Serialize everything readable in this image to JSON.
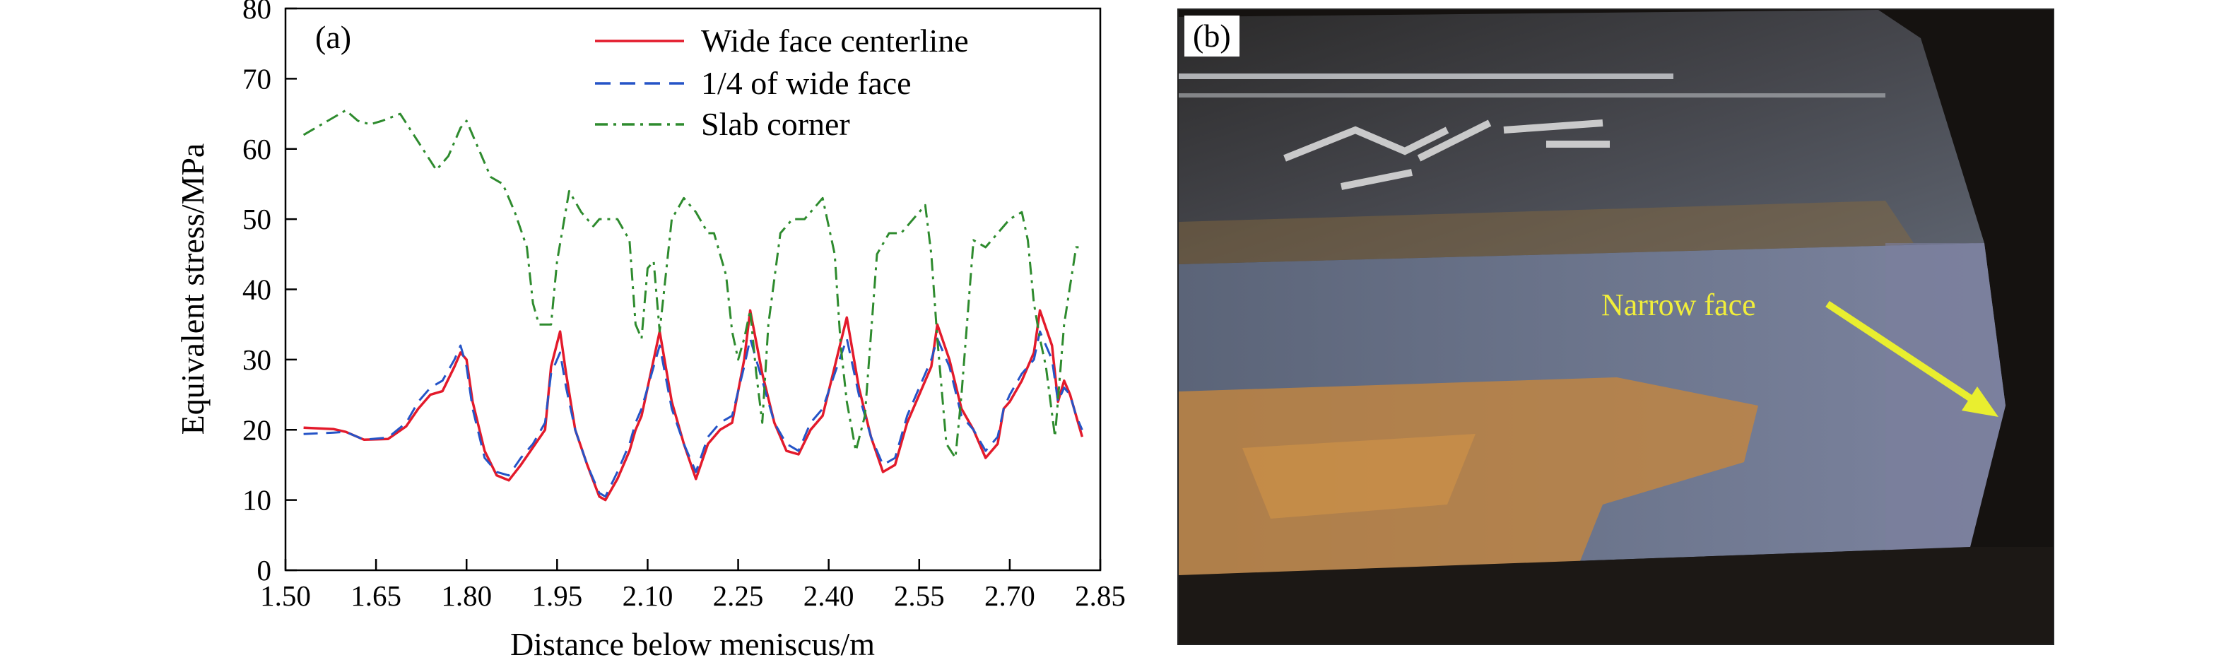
{
  "chart_data": {
    "type": "line",
    "panel_label": "(a)",
    "xlabel": "Distance below meniscus/m",
    "ylabel": "Equivalent stress/MPa",
    "xlim": [
      1.5,
      2.85
    ],
    "ylim": [
      0,
      80
    ],
    "xticks": [
      "1.50",
      "1.65",
      "1.80",
      "1.95",
      "2.10",
      "2.25",
      "2.40",
      "2.55",
      "2.70",
      "2.85"
    ],
    "yticks": [
      "0",
      "10",
      "20",
      "30",
      "40",
      "50",
      "60",
      "70",
      "80"
    ],
    "legend_position": "top-right",
    "grid": false,
    "series": [
      {
        "name": "Wide face centerline",
        "color": "#e31a2b",
        "dash": "solid",
        "points": [
          [
            1.53,
            20.3
          ],
          [
            1.58,
            20.1
          ],
          [
            1.6,
            19.7
          ],
          [
            1.63,
            18.6
          ],
          [
            1.67,
            18.7
          ],
          [
            1.7,
            20.5
          ],
          [
            1.72,
            23
          ],
          [
            1.74,
            25
          ],
          [
            1.76,
            25.5
          ],
          [
            1.78,
            29
          ],
          [
            1.79,
            31
          ],
          [
            1.8,
            30
          ],
          [
            1.81,
            24
          ],
          [
            1.83,
            17
          ],
          [
            1.85,
            13.5
          ],
          [
            1.87,
            12.8
          ],
          [
            1.89,
            15
          ],
          [
            1.91,
            17.5
          ],
          [
            1.93,
            20
          ],
          [
            1.94,
            29
          ],
          [
            1.955,
            34
          ],
          [
            1.965,
            28
          ],
          [
            1.98,
            20
          ],
          [
            2.0,
            15
          ],
          [
            2.02,
            10.5
          ],
          [
            2.03,
            10
          ],
          [
            2.05,
            13
          ],
          [
            2.07,
            17
          ],
          [
            2.08,
            20
          ],
          [
            2.09,
            22
          ],
          [
            2.11,
            30
          ],
          [
            2.12,
            34
          ],
          [
            2.14,
            24
          ],
          [
            2.16,
            18
          ],
          [
            2.18,
            13
          ],
          [
            2.2,
            18
          ],
          [
            2.22,
            20
          ],
          [
            2.24,
            21
          ],
          [
            2.26,
            30
          ],
          [
            2.27,
            37
          ],
          [
            2.29,
            28
          ],
          [
            2.31,
            21
          ],
          [
            2.33,
            17
          ],
          [
            2.35,
            16.5
          ],
          [
            2.37,
            20
          ],
          [
            2.39,
            22
          ],
          [
            2.41,
            29
          ],
          [
            2.43,
            36
          ],
          [
            2.45,
            26
          ],
          [
            2.47,
            19
          ],
          [
            2.49,
            14
          ],
          [
            2.51,
            15
          ],
          [
            2.53,
            21
          ],
          [
            2.55,
            25
          ],
          [
            2.57,
            29
          ],
          [
            2.58,
            35
          ],
          [
            2.6,
            30
          ],
          [
            2.62,
            23
          ],
          [
            2.64,
            20
          ],
          [
            2.66,
            16
          ],
          [
            2.68,
            18
          ],
          [
            2.69,
            23
          ],
          [
            2.7,
            24
          ],
          [
            2.72,
            27
          ],
          [
            2.74,
            31
          ],
          [
            2.75,
            37
          ],
          [
            2.77,
            32
          ],
          [
            2.78,
            24
          ],
          [
            2.79,
            27
          ],
          [
            2.8,
            25
          ],
          [
            2.81,
            22
          ],
          [
            2.82,
            19
          ]
        ]
      },
      {
        "name": "1/4 of wide face",
        "color": "#2554c7",
        "dash": "dashed",
        "points": [
          [
            1.53,
            19.4
          ],
          [
            1.58,
            19.6
          ],
          [
            1.6,
            19.7
          ],
          [
            1.63,
            18.6
          ],
          [
            1.67,
            18.9
          ],
          [
            1.7,
            21
          ],
          [
            1.72,
            24
          ],
          [
            1.74,
            26
          ],
          [
            1.76,
            27
          ],
          [
            1.78,
            30
          ],
          [
            1.79,
            32
          ],
          [
            1.8,
            29
          ],
          [
            1.81,
            23
          ],
          [
            1.83,
            16
          ],
          [
            1.85,
            14
          ],
          [
            1.87,
            13.5
          ],
          [
            1.89,
            16
          ],
          [
            1.91,
            18
          ],
          [
            1.93,
            21
          ],
          [
            1.94,
            28
          ],
          [
            1.955,
            31
          ],
          [
            1.965,
            26
          ],
          [
            1.98,
            20
          ],
          [
            2.0,
            15
          ],
          [
            2.02,
            11
          ],
          [
            2.03,
            10.5
          ],
          [
            2.05,
            14
          ],
          [
            2.07,
            18
          ],
          [
            2.08,
            21
          ],
          [
            2.09,
            23
          ],
          [
            2.11,
            29
          ],
          [
            2.12,
            32
          ],
          [
            2.14,
            23
          ],
          [
            2.16,
            18
          ],
          [
            2.18,
            14
          ],
          [
            2.2,
            19
          ],
          [
            2.22,
            21
          ],
          [
            2.24,
            22
          ],
          [
            2.26,
            29
          ],
          [
            2.27,
            33
          ],
          [
            2.29,
            27
          ],
          [
            2.31,
            21
          ],
          [
            2.33,
            18
          ],
          [
            2.35,
            17
          ],
          [
            2.37,
            21
          ],
          [
            2.39,
            23
          ],
          [
            2.41,
            28
          ],
          [
            2.43,
            33
          ],
          [
            2.45,
            25
          ],
          [
            2.47,
            19
          ],
          [
            2.49,
            15
          ],
          [
            2.51,
            16
          ],
          [
            2.53,
            22
          ],
          [
            2.55,
            26
          ],
          [
            2.57,
            30
          ],
          [
            2.58,
            33
          ],
          [
            2.6,
            29
          ],
          [
            2.62,
            22
          ],
          [
            2.64,
            20
          ],
          [
            2.66,
            17
          ],
          [
            2.68,
            19
          ],
          [
            2.69,
            23
          ],
          [
            2.7,
            25
          ],
          [
            2.72,
            28
          ],
          [
            2.74,
            30
          ],
          [
            2.75,
            34
          ],
          [
            2.77,
            30
          ],
          [
            2.78,
            24
          ],
          [
            2.79,
            26
          ],
          [
            2.8,
            25
          ],
          [
            2.81,
            22
          ],
          [
            2.82,
            20
          ]
        ]
      },
      {
        "name": "Slab corner",
        "color": "#2e8b2e",
        "dash": "dashdot",
        "points": [
          [
            1.53,
            62
          ],
          [
            1.57,
            64
          ],
          [
            1.6,
            65.5
          ],
          [
            1.62,
            64
          ],
          [
            1.64,
            63.5
          ],
          [
            1.66,
            64
          ],
          [
            1.69,
            65
          ],
          [
            1.72,
            61
          ],
          [
            1.75,
            57
          ],
          [
            1.77,
            59
          ],
          [
            1.79,
            63
          ],
          [
            1.8,
            64
          ],
          [
            1.82,
            60
          ],
          [
            1.84,
            56
          ],
          [
            1.86,
            55
          ],
          [
            1.88,
            51
          ],
          [
            1.9,
            46
          ],
          [
            1.91,
            38
          ],
          [
            1.92,
            35
          ],
          [
            1.94,
            35
          ],
          [
            1.95,
            44
          ],
          [
            1.97,
            54
          ],
          [
            1.99,
            51
          ],
          [
            2.01,
            49
          ],
          [
            2.02,
            50
          ],
          [
            2.05,
            50
          ],
          [
            2.07,
            47
          ],
          [
            2.08,
            35
          ],
          [
            2.09,
            33
          ],
          [
            2.1,
            43
          ],
          [
            2.11,
            44
          ],
          [
            2.12,
            34
          ],
          [
            2.13,
            42
          ],
          [
            2.14,
            50
          ],
          [
            2.16,
            53
          ],
          [
            2.18,
            51
          ],
          [
            2.2,
            48
          ],
          [
            2.21,
            48
          ],
          [
            2.23,
            42
          ],
          [
            2.24,
            34
          ],
          [
            2.25,
            30
          ],
          [
            2.26,
            33
          ],
          [
            2.27,
            37
          ],
          [
            2.28,
            28
          ],
          [
            2.29,
            21
          ],
          [
            2.3,
            35
          ],
          [
            2.32,
            48
          ],
          [
            2.34,
            50
          ],
          [
            2.36,
            50
          ],
          [
            2.38,
            52
          ],
          [
            2.39,
            53
          ],
          [
            2.41,
            45
          ],
          [
            2.42,
            32
          ],
          [
            2.43,
            24
          ],
          [
            2.445,
            17
          ],
          [
            2.46,
            22
          ],
          [
            2.48,
            45
          ],
          [
            2.5,
            48
          ],
          [
            2.52,
            48
          ],
          [
            2.54,
            50
          ],
          [
            2.56,
            52
          ],
          [
            2.57,
            45
          ],
          [
            2.58,
            33
          ],
          [
            2.595,
            18
          ],
          [
            2.61,
            16
          ],
          [
            2.62,
            25
          ],
          [
            2.64,
            47
          ],
          [
            2.66,
            46
          ],
          [
            2.68,
            48
          ],
          [
            2.7,
            50
          ],
          [
            2.72,
            51
          ],
          [
            2.73,
            47
          ],
          [
            2.74,
            38
          ],
          [
            2.75,
            33
          ],
          [
            2.76,
            29
          ],
          [
            2.775,
            19
          ],
          [
            2.79,
            35
          ],
          [
            2.81,
            46
          ],
          [
            2.82,
            46
          ]
        ]
      }
    ]
  },
  "photo": {
    "panel_label": "(b)",
    "annotation": "Narrow face",
    "arrow_color": "#e9ee2f"
  }
}
